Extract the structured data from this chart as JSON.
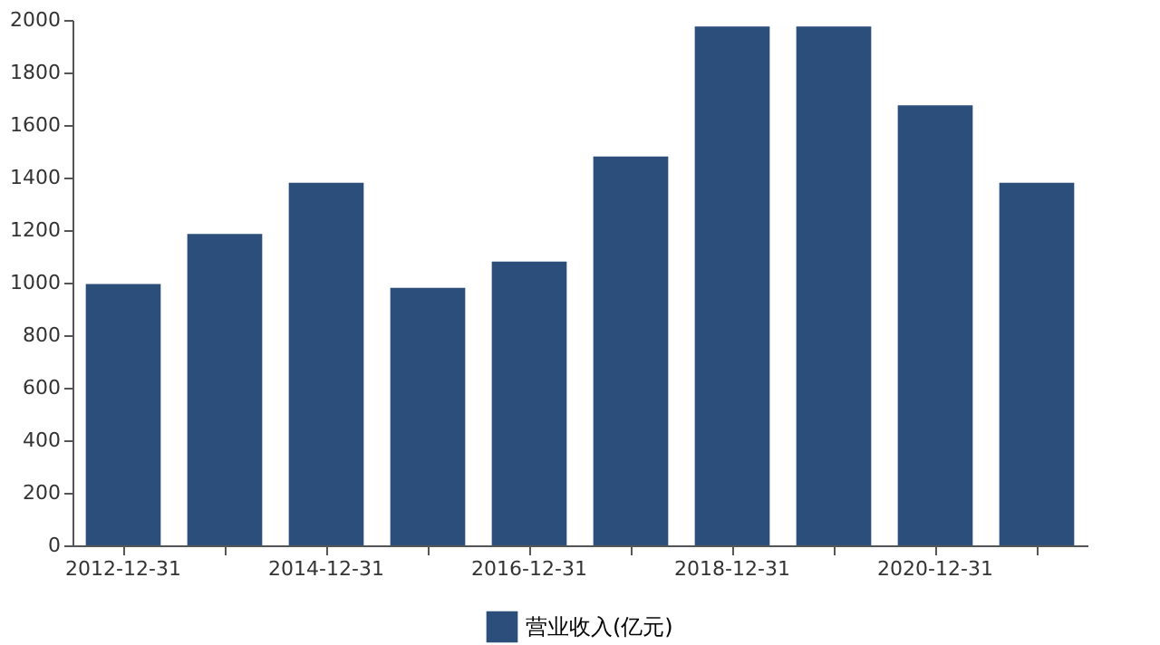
{
  "chart_data": {
    "type": "bar",
    "categories": [
      "2012-12-31",
      null,
      "2014-12-31",
      null,
      "2016-12-31",
      null,
      "2018-12-31",
      null,
      "2020-12-31",
      null
    ],
    "series": [
      {
        "name": "营业收入(亿元)",
        "color": "#2c4e7a",
        "values": [
          995,
          1185,
          1380,
          980,
          1080,
          1480,
          1975,
          1975,
          1675,
          1380
        ]
      }
    ],
    "ylim": [
      0,
      2000
    ],
    "yticks": [
      0,
      200,
      400,
      600,
      800,
      1000,
      1200,
      1400,
      1600,
      1800,
      2000
    ],
    "grid": false,
    "legend": "bottom"
  }
}
